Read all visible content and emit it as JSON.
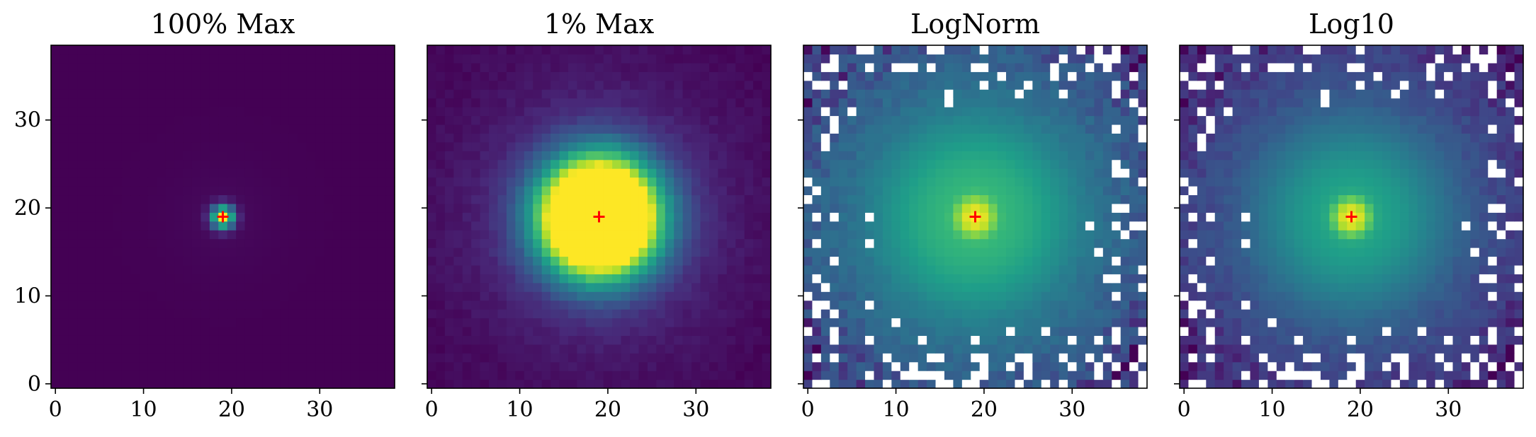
{
  "chart_data": [
    {
      "type": "heatmap",
      "title": "100% Max",
      "colormap": "viridis",
      "scale": "linear",
      "vmax_fraction_of_peak": 1.0,
      "xlim": [
        -0.5,
        38.5
      ],
      "ylim": [
        -0.5,
        38.5
      ],
      "xticks": [
        0,
        10,
        20,
        30
      ],
      "yticks": [
        0,
        10,
        20,
        30
      ],
      "ytick_labels_shown": true,
      "marker": {
        "symbol": "+",
        "color": "#ff0000",
        "x": 19,
        "y": 19
      },
      "description_values": {
        "peak_center": [
          19,
          19
        ],
        "core_halfwidth_px": 1
      }
    },
    {
      "type": "heatmap",
      "title": "1% Max",
      "colormap": "viridis",
      "scale": "linear",
      "vmax_fraction_of_peak": 0.01,
      "xlim": [
        -0.5,
        38.5
      ],
      "ylim": [
        -0.5,
        38.5
      ],
      "xticks": [
        0,
        10,
        20,
        30
      ],
      "yticks": [
        0,
        10,
        20,
        30
      ],
      "ytick_labels_shown": false,
      "marker": {
        "symbol": "+",
        "color": "#ff0000",
        "x": 19,
        "y": 19
      },
      "description_values": {
        "saturated_radius_px": 5.5
      }
    },
    {
      "type": "heatmap",
      "title": "LogNorm",
      "colormap": "viridis",
      "scale": "log",
      "xlim": [
        -0.5,
        38.5
      ],
      "ylim": [
        -0.5,
        38.5
      ],
      "xticks": [
        0,
        10,
        20,
        30
      ],
      "yticks": [
        0,
        10,
        20,
        30
      ],
      "ytick_labels_shown": false,
      "marker": {
        "symbol": "+",
        "color": "#ff0000",
        "x": 19,
        "y": 19
      },
      "masked_color": "#ffffff"
    },
    {
      "type": "heatmap",
      "title": "Log10",
      "colormap": "viridis",
      "scale": "log10",
      "xlim": [
        -0.5,
        38.5
      ],
      "ylim": [
        -0.5,
        38.5
      ],
      "xticks": [
        0,
        10,
        20,
        30
      ],
      "yticks": [
        0,
        10,
        20,
        30
      ],
      "ytick_labels_shown": false,
      "marker": {
        "symbol": "+",
        "color": "#ff0000",
        "x": 19,
        "y": 19
      },
      "masked_color": "#ffffff"
    }
  ],
  "colors": {
    "viridis": [
      "#440154",
      "#482878",
      "#3e4989",
      "#31688e",
      "#26828e",
      "#1f9e89",
      "#35b779",
      "#6ece58",
      "#b5de2b",
      "#fde725"
    ],
    "marker": "#ff0000",
    "axis": "#000000"
  }
}
